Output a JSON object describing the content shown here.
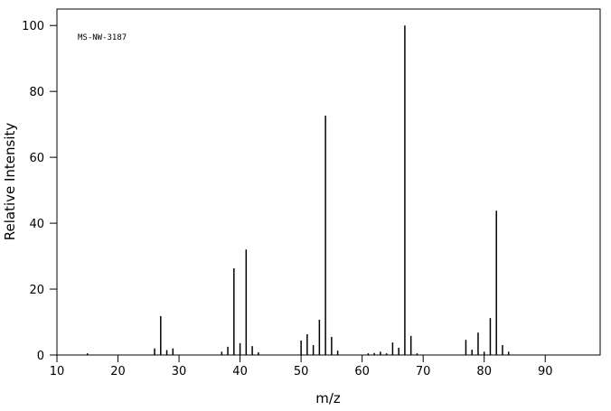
{
  "chart_data": {
    "type": "stem",
    "annotation": "MS-NW-3187",
    "xlabel": "m/z",
    "ylabel": "Relative Intensity",
    "x": [
      15,
      26,
      27,
      28,
      29,
      37,
      38,
      39,
      40,
      41,
      42,
      43,
      50,
      51,
      52,
      53,
      54,
      55,
      56,
      61,
      62,
      63,
      64,
      65,
      66,
      67,
      68,
      69,
      77,
      78,
      79,
      80,
      81,
      82,
      83,
      84
    ],
    "values": [
      0.5,
      2,
      11.8,
      1.5,
      2,
      1,
      2.5,
      26.3,
      3.6,
      32,
      2.7,
      0.8,
      4.4,
      6.3,
      3,
      10.7,
      72.6,
      5.5,
      1.3,
      0.5,
      0.6,
      1,
      0.5,
      3.8,
      2.2,
      100,
      5.8,
      0.5,
      4.6,
      1.6,
      6.8,
      1,
      11.2,
      43.8,
      3,
      1
    ],
    "color": "#000000",
    "xlim": [
      10,
      99
    ],
    "xticks": [
      10,
      20,
      30,
      40,
      50,
      60,
      70,
      80,
      90
    ],
    "ylim": [
      0,
      105
    ],
    "yticks": [
      0,
      20,
      40,
      60,
      80,
      100
    ]
  }
}
